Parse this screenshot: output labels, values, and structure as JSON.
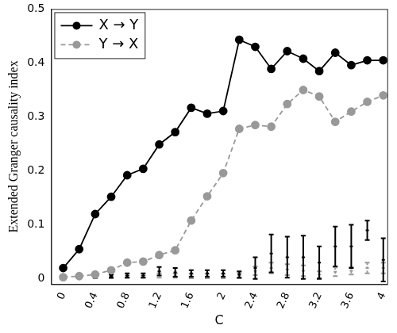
{
  "chart_data": {
    "type": "line",
    "x_label": "C",
    "y_label": "Extended Granger causality index",
    "x": [
      0,
      0.2,
      0.4,
      0.6,
      0.8,
      1.0,
      1.2,
      1.4,
      1.6,
      1.8,
      2.0,
      2.2,
      2.4,
      2.6,
      2.8,
      3.0,
      3.2,
      3.4,
      3.6,
      3.8,
      4.0
    ],
    "xlim": [
      -0.15,
      4.05
    ],
    "xticks": [
      0,
      0.4,
      0.8,
      1.2,
      1.6,
      2,
      2.4,
      2.8,
      3.2,
      3.6,
      4
    ],
    "ylim": [
      -0.01,
      0.5
    ],
    "yticks": [
      0,
      0.1,
      0.2,
      0.3,
      0.4,
      0.5
    ],
    "grid": false,
    "legend": "top-left",
    "series": [
      {
        "name": "X → Y",
        "color": "#000000",
        "marker": "circle",
        "line_style": "solid",
        "values": [
          0.02,
          0.055,
          0.12,
          0.152,
          0.192,
          0.204,
          0.249,
          0.272,
          0.317,
          0.306,
          0.311,
          0.443,
          0.43,
          0.389,
          0.422,
          0.408,
          0.385,
          0.419,
          0.396,
          0.405,
          0.405
        ],
        "surrogate_values": [
          0.003,
          0.004,
          0.005,
          0.005,
          0.006,
          0.006,
          0.014,
          0.012,
          0.01,
          0.01,
          0.01,
          0.008,
          0.02,
          0.047,
          0.04,
          0.04,
          0.03,
          0.06,
          0.06,
          0.09,
          0.035
        ],
        "surrogate_errors": [
          0.002,
          0.002,
          0.003,
          0.003,
          0.004,
          0.004,
          0.008,
          0.008,
          0.006,
          0.006,
          0.006,
          0.006,
          0.02,
          0.035,
          0.038,
          0.04,
          0.03,
          0.037,
          0.04,
          0.018,
          0.04
        ]
      },
      {
        "name": "Y → X",
        "color": "#999999",
        "marker": "circle",
        "line_style": "dashed",
        "values": [
          0.003,
          0.005,
          0.008,
          0.016,
          0.03,
          0.032,
          0.044,
          0.053,
          0.108,
          0.153,
          0.196,
          0.278,
          0.285,
          0.282,
          0.324,
          0.35,
          0.338,
          0.291,
          0.31,
          0.328,
          0.34
        ],
        "surrogate_values": [
          0.002,
          0.002,
          0.003,
          0.003,
          0.004,
          0.004,
          0.006,
          0.006,
          0.005,
          0.005,
          0.005,
          0.006,
          0.015,
          0.02,
          0.017,
          0.015,
          0.008,
          0.013,
          0.015,
          0.02,
          0.02
        ],
        "surrogate_errors": [
          0.001,
          0.001,
          0.002,
          0.002,
          0.002,
          0.002,
          0.004,
          0.004,
          0.004,
          0.004,
          0.004,
          0.005,
          0.008,
          0.01,
          0.01,
          0.01,
          0.006,
          0.008,
          0.007,
          0.01,
          0.01
        ]
      }
    ]
  }
}
